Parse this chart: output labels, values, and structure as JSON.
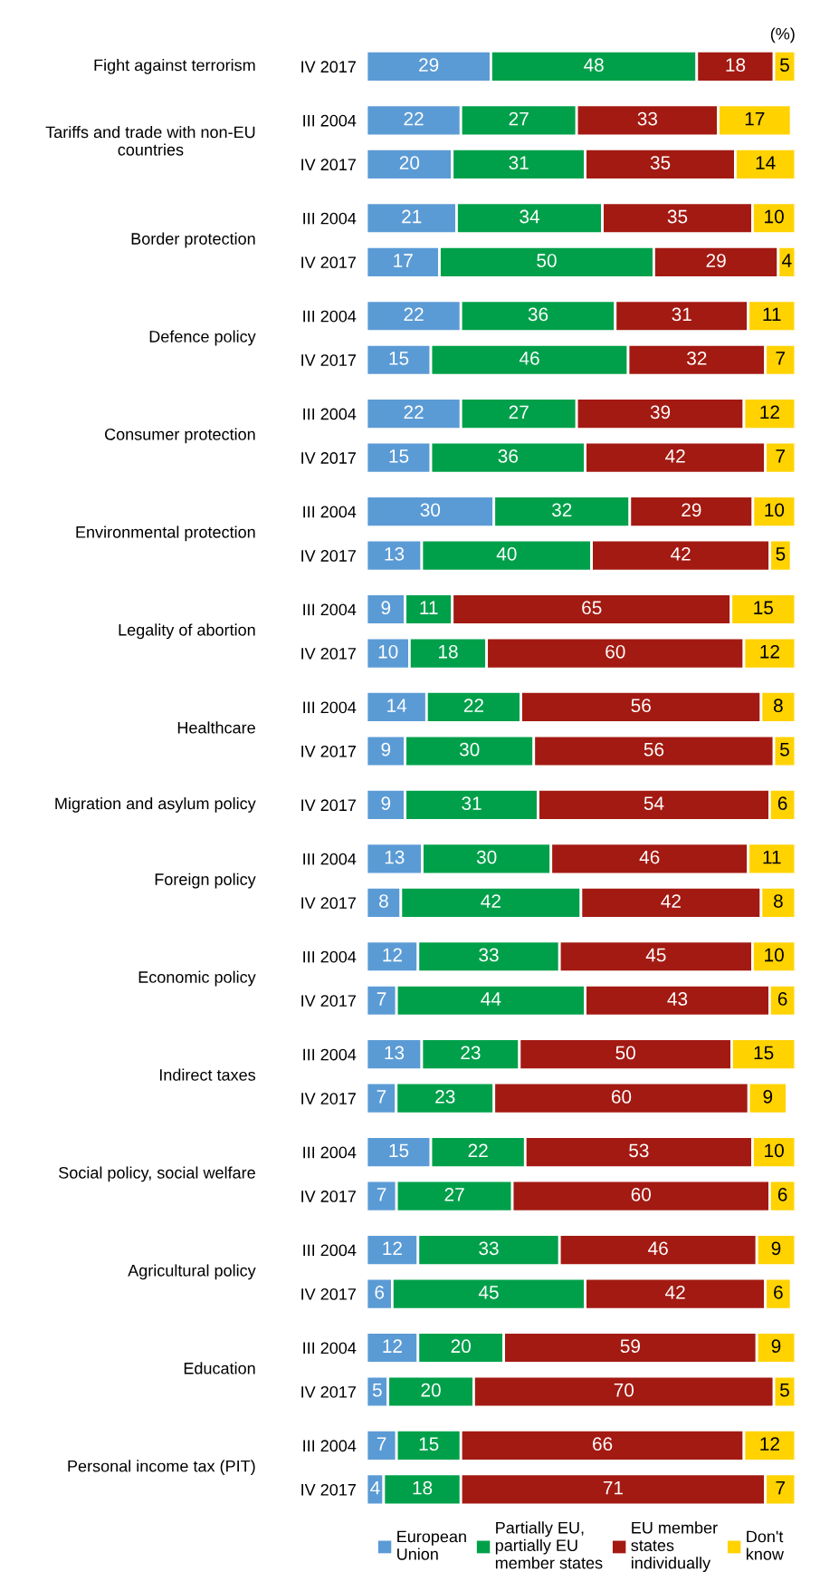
{
  "chart_data": [
    {
      "type": "bar",
      "orientation": "horizontal",
      "stacked": true,
      "data_labels": true,
      "tick_labels": "y",
      "title": "Fight against terrorism",
      "annotations": [
        "(%)"
      ],
      "categories": [
        "IV 2017"
      ],
      "series": [
        {
          "color": "#5b9bd5",
          "values": [
            29
          ]
        },
        {
          "color": "#00a04a",
          "values": [
            48
          ]
        },
        {
          "color": "#a31a12",
          "values": [
            18
          ]
        },
        {
          "color": "#ffd200",
          "values": [
            5
          ]
        }
      ]
    },
    {
      "type": "bar",
      "orientation": "horizontal",
      "stacked": true,
      "data_labels": true,
      "tick_labels": "y",
      "title": "Tariffs and trade with non-EU\ncountries",
      "categories": [
        "III 2004",
        "IV 2017"
      ],
      "series": [
        {
          "color": "#5b9bd5",
          "values": [
            22,
            20
          ]
        },
        {
          "color": "#00a04a",
          "values": [
            27,
            31
          ]
        },
        {
          "color": "#a31a12",
          "values": [
            33,
            35
          ]
        },
        {
          "color": "#ffd200",
          "values": [
            17,
            14
          ]
        }
      ]
    },
    {
      "type": "bar",
      "orientation": "horizontal",
      "stacked": true,
      "data_labels": true,
      "tick_labels": "y",
      "title": "Border protection",
      "categories": [
        "III 2004",
        "IV 2017"
      ],
      "series": [
        {
          "color": "#5b9bd5",
          "values": [
            21,
            17
          ]
        },
        {
          "color": "#00a04a",
          "values": [
            34,
            50
          ]
        },
        {
          "color": "#a31a12",
          "values": [
            35,
            29
          ]
        },
        {
          "color": "#ffd200",
          "values": [
            10,
            4
          ]
        }
      ]
    },
    {
      "type": "bar",
      "orientation": "horizontal",
      "stacked": true,
      "data_labels": true,
      "tick_labels": "y",
      "title": "Defence policy",
      "categories": [
        "III 2004",
        "IV 2017"
      ],
      "series": [
        {
          "color": "#5b9bd5",
          "values": [
            22,
            15
          ]
        },
        {
          "color": "#00a04a",
          "values": [
            36,
            46
          ]
        },
        {
          "color": "#a31a12",
          "values": [
            31,
            32
          ]
        },
        {
          "color": "#ffd200",
          "values": [
            11,
            7
          ]
        }
      ]
    },
    {
      "type": "bar",
      "orientation": "horizontal",
      "stacked": true,
      "data_labels": true,
      "tick_labels": "y",
      "title": "Consumer protection",
      "categories": [
        "III 2004",
        "IV 2017"
      ],
      "series": [
        {
          "color": "#5b9bd5",
          "values": [
            22,
            15
          ]
        },
        {
          "color": "#00a04a",
          "values": [
            27,
            36
          ]
        },
        {
          "color": "#a31a12",
          "values": [
            39,
            42
          ]
        },
        {
          "color": "#ffd200",
          "values": [
            12,
            7
          ]
        }
      ]
    },
    {
      "type": "bar",
      "orientation": "horizontal",
      "stacked": true,
      "data_labels": true,
      "tick_labels": "y",
      "title": "Environmental protection",
      "categories": [
        "III 2004",
        "IV 2017"
      ],
      "series": [
        {
          "color": "#5b9bd5",
          "values": [
            30,
            13
          ]
        },
        {
          "color": "#00a04a",
          "values": [
            32,
            40
          ]
        },
        {
          "color": "#a31a12",
          "values": [
            29,
            42
          ]
        },
        {
          "color": "#ffd200",
          "values": [
            10,
            5
          ]
        }
      ]
    },
    {
      "type": "bar",
      "orientation": "horizontal",
      "stacked": true,
      "data_labels": true,
      "tick_labels": "y",
      "title": "Legality of abortion",
      "categories": [
        "III 2004",
        "IV 2017"
      ],
      "series": [
        {
          "color": "#5b9bd5",
          "values": [
            9,
            10
          ]
        },
        {
          "color": "#00a04a",
          "values": [
            11,
            18
          ]
        },
        {
          "color": "#a31a12",
          "values": [
            65,
            60
          ]
        },
        {
          "color": "#ffd200",
          "values": [
            15,
            12
          ]
        }
      ]
    },
    {
      "type": "bar",
      "orientation": "horizontal",
      "stacked": true,
      "data_labels": true,
      "tick_labels": "y",
      "title": "Healthcare",
      "categories": [
        "III 2004",
        "IV 2017"
      ],
      "series": [
        {
          "color": "#5b9bd5",
          "values": [
            14,
            9
          ]
        },
        {
          "color": "#00a04a",
          "values": [
            22,
            30
          ]
        },
        {
          "color": "#a31a12",
          "values": [
            56,
            56
          ]
        },
        {
          "color": "#ffd200",
          "values": [
            8,
            5
          ]
        }
      ]
    },
    {
      "type": "bar",
      "orientation": "horizontal",
      "stacked": true,
      "data_labels": true,
      "tick_labels": "y",
      "title": "Migration and asylum policy",
      "categories": [
        "IV 2017"
      ],
      "series": [
        {
          "color": "#5b9bd5",
          "values": [
            9
          ]
        },
        {
          "color": "#00a04a",
          "values": [
            31
          ]
        },
        {
          "color": "#a31a12",
          "values": [
            54
          ]
        },
        {
          "color": "#ffd200",
          "values": [
            6
          ]
        }
      ]
    },
    {
      "type": "bar",
      "orientation": "horizontal",
      "stacked": true,
      "data_labels": true,
      "tick_labels": "y",
      "title": "Foreign policy",
      "categories": [
        "III 2004",
        "IV 2017"
      ],
      "series": [
        {
          "color": "#5b9bd5",
          "values": [
            13,
            8
          ]
        },
        {
          "color": "#00a04a",
          "values": [
            30,
            42
          ]
        },
        {
          "color": "#a31a12",
          "values": [
            46,
            42
          ]
        },
        {
          "color": "#ffd200",
          "values": [
            11,
            8
          ]
        }
      ]
    },
    {
      "type": "bar",
      "orientation": "horizontal",
      "stacked": true,
      "data_labels": true,
      "tick_labels": "y",
      "title": "Economic policy",
      "categories": [
        "III 2004",
        "IV 2017"
      ],
      "series": [
        {
          "color": "#5b9bd5",
          "values": [
            12,
            7
          ]
        },
        {
          "color": "#00a04a",
          "values": [
            33,
            44
          ]
        },
        {
          "color": "#a31a12",
          "values": [
            45,
            43
          ]
        },
        {
          "color": "#ffd200",
          "values": [
            10,
            6
          ]
        }
      ]
    },
    {
      "type": "bar",
      "orientation": "horizontal",
      "stacked": true,
      "data_labels": true,
      "tick_labels": "y",
      "title": "Indirect taxes",
      "categories": [
        "III 2004",
        "IV 2017"
      ],
      "series": [
        {
          "color": "#5b9bd5",
          "values": [
            13,
            7
          ]
        },
        {
          "color": "#00a04a",
          "values": [
            23,
            23
          ]
        },
        {
          "color": "#a31a12",
          "values": [
            50,
            60
          ]
        },
        {
          "color": "#ffd200",
          "values": [
            15,
            9
          ]
        }
      ]
    },
    {
      "type": "bar",
      "orientation": "horizontal",
      "stacked": true,
      "data_labels": true,
      "tick_labels": "y",
      "title": "Social policy, social welfare",
      "categories": [
        "III 2004",
        "IV 2017"
      ],
      "series": [
        {
          "color": "#5b9bd5",
          "values": [
            15,
            7
          ]
        },
        {
          "color": "#00a04a",
          "values": [
            22,
            27
          ]
        },
        {
          "color": "#a31a12",
          "values": [
            53,
            60
          ]
        },
        {
          "color": "#ffd200",
          "values": [
            10,
            6
          ]
        }
      ]
    },
    {
      "type": "bar",
      "orientation": "horizontal",
      "stacked": true,
      "data_labels": true,
      "tick_labels": "y",
      "title": "Agricultural policy",
      "categories": [
        "III 2004",
        "IV 2017"
      ],
      "series": [
        {
          "color": "#5b9bd5",
          "values": [
            12,
            6
          ]
        },
        {
          "color": "#00a04a",
          "values": [
            33,
            45
          ]
        },
        {
          "color": "#a31a12",
          "values": [
            46,
            42
          ]
        },
        {
          "color": "#ffd200",
          "values": [
            9,
            6
          ]
        }
      ]
    },
    {
      "type": "bar",
      "orientation": "horizontal",
      "stacked": true,
      "data_labels": true,
      "tick_labels": "y",
      "title": "Education",
      "categories": [
        "III 2004",
        "IV 2017"
      ],
      "series": [
        {
          "color": "#5b9bd5",
          "values": [
            12,
            5
          ]
        },
        {
          "color": "#00a04a",
          "values": [
            20,
            20
          ]
        },
        {
          "color": "#a31a12",
          "values": [
            59,
            70
          ]
        },
        {
          "color": "#ffd200",
          "values": [
            9,
            5
          ]
        }
      ]
    },
    {
      "type": "bar",
      "orientation": "horizontal",
      "stacked": true,
      "data_labels": true,
      "tick_labels": "y",
      "title": "Personal income tax (PIT)",
      "legend": "bottom",
      "categories": [
        "III 2004",
        "IV 2017"
      ],
      "series": [
        {
          "name": "European\nUnion",
          "color": "#5b9bd5",
          "values": [
            7,
            4
          ]
        },
        {
          "name": "Partially EU,\npartially EU\nmember states",
          "color": "#00a04a",
          "values": [
            15,
            18
          ]
        },
        {
          "name": "EU member\nstates\nindividually",
          "color": "#a31a12",
          "values": [
            66,
            71
          ]
        },
        {
          "name": "Don't\nknow",
          "color": "#ffd200",
          "values": [
            12,
            7
          ]
        }
      ]
    }
  ]
}
